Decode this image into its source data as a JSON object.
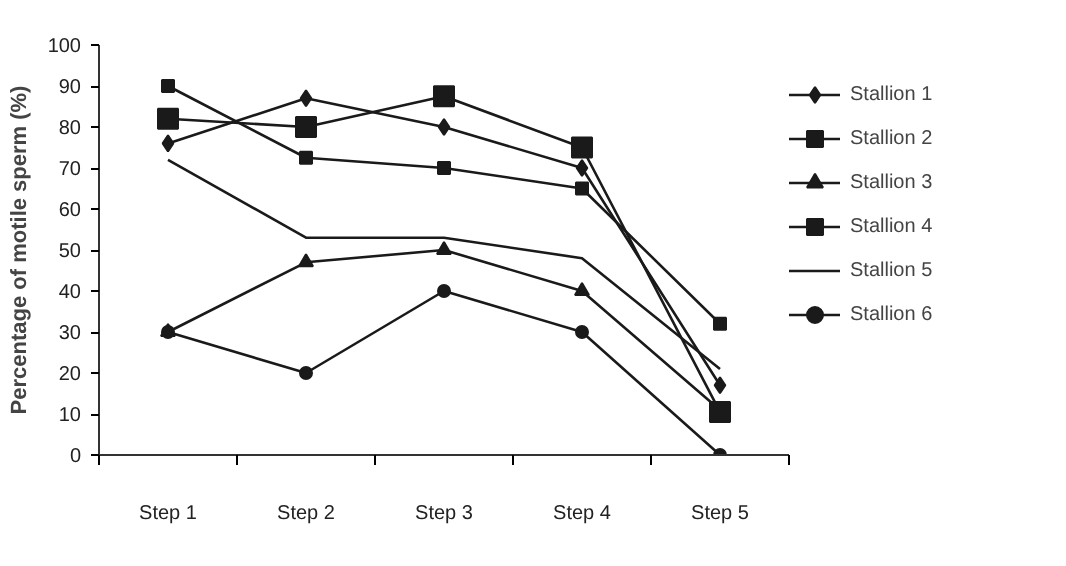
{
  "chart_data": {
    "type": "line",
    "ylabel": "Percentage of motile sperm (%)",
    "categories": [
      "Step 1",
      "Step 2",
      "Step 3",
      "Step 4",
      "Step 5"
    ],
    "series": [
      {
        "name": "Stallion 1",
        "color": "#1a1a1a",
        "marker": "diamond",
        "values": [
          76,
          87,
          80,
          70,
          17
        ]
      },
      {
        "name": "Stallion 2",
        "color": "#1a1a1a",
        "marker": "square",
        "values": [
          90,
          72.5,
          70,
          65,
          32
        ]
      },
      {
        "name": "Stallion 3",
        "color": "#1a1a1a",
        "marker": "triangle",
        "values": [
          30,
          47,
          50,
          40,
          11
        ]
      },
      {
        "name": "Stallion 4",
        "color": "#1a1a1a",
        "marker": "square",
        "values": [
          82,
          80,
          87.5,
          75,
          10.5
        ]
      },
      {
        "name": "Stallion 5",
        "color": "#1a1a1a",
        "marker": "none",
        "values": [
          72,
          53,
          53,
          48,
          21
        ]
      },
      {
        "name": "Stallion 6",
        "color": "#1a1a1a",
        "marker": "circle",
        "values": [
          30,
          20,
          40,
          30,
          0
        ]
      }
    ],
    "ylim": [
      0,
      100
    ],
    "yticks": [
      0,
      10,
      20,
      30,
      40,
      50,
      60,
      70,
      80,
      90,
      100
    ],
    "grid": false,
    "legend": "right",
    "line_style": "solid"
  }
}
